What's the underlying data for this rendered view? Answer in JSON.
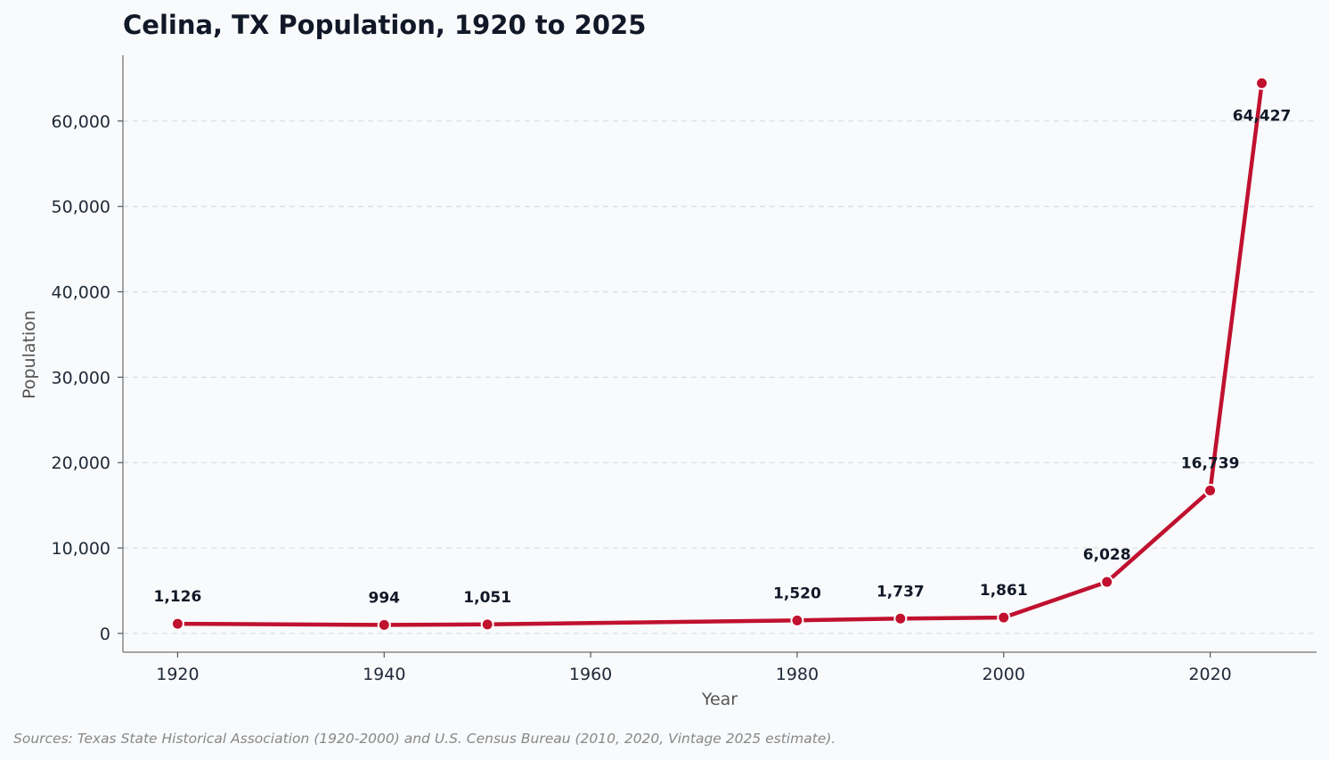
{
  "chart_data": {
    "type": "line",
    "title": "Celina, TX Population, 1920 to 2025",
    "xlabel": "Year",
    "ylabel": "Population",
    "xlim": [
      1914.7,
      2030.3
    ],
    "ylim": [
      -2200,
      67700
    ],
    "x_ticks": [
      1920,
      1940,
      1960,
      1980,
      2000,
      2020
    ],
    "y_ticks": [
      0,
      10000,
      20000,
      30000,
      40000,
      50000,
      60000
    ],
    "y_tick_labels": [
      "0",
      "10,000",
      "20,000",
      "30,000",
      "40,000",
      "50,000",
      "60,000"
    ],
    "grid": "horizontal dashed",
    "series": [
      {
        "x": [
          1920,
          1940,
          1950,
          1980,
          1990,
          2000,
          2010,
          2020,
          2025
        ],
        "values": [
          1126,
          994,
          1051,
          1520,
          1737,
          1861,
          6028,
          16739,
          64427
        ],
        "labels": [
          "1,126",
          "994",
          "1,051",
          "1,520",
          "1,737",
          "1,861",
          "6,028",
          "16,739",
          "64,427"
        ]
      }
    ],
    "colors": {
      "line": "#c0112f",
      "background": "#f8fafc"
    }
  },
  "source_note": "Sources: Texas State Historical Association (1920-2000) and U.S. Census Bureau (2010, 2020, Vintage 2025 estimate)."
}
